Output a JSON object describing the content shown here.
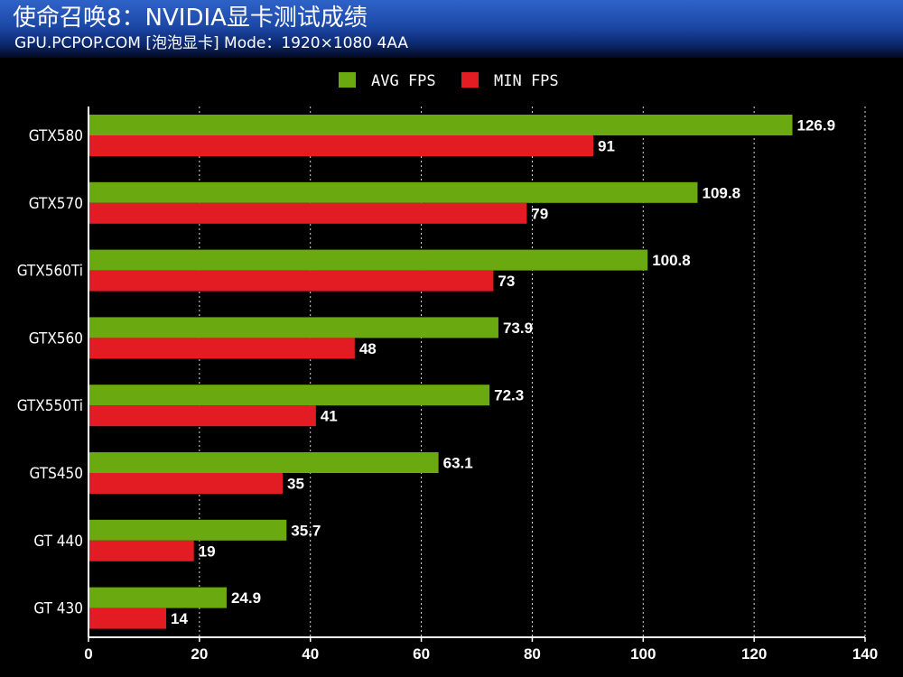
{
  "header": {
    "title": "使命召唤8：NVIDIA显卡测试成绩",
    "subtitle": "GPU.PCPOP.COM [泡泡显卡] Mode：1920×1080 4AA"
  },
  "colors": {
    "background": "#000000",
    "avg": "#6aaa10",
    "min": "#e31b23",
    "grid": "#ffffff",
    "text": "#ffffff"
  },
  "chart_data": {
    "type": "bar",
    "orientation": "horizontal",
    "categories": [
      "GTX580",
      "GTX570",
      "GTX560Ti",
      "GTX560",
      "GTX550Ti",
      "GTS450",
      "GT 440",
      "GT 430"
    ],
    "series": [
      {
        "name": "AVG FPS",
        "color": "#6aaa10",
        "values": [
          126.9,
          109.8,
          100.8,
          73.9,
          72.3,
          63.1,
          35.7,
          24.9
        ]
      },
      {
        "name": "MIN FPS",
        "color": "#e31b23",
        "values": [
          91,
          79,
          73,
          48,
          41,
          35,
          19,
          14
        ]
      }
    ],
    "xlim": [
      0,
      140
    ],
    "xticks": [
      0,
      20,
      40,
      60,
      80,
      100,
      120,
      140
    ],
    "grid": "vertical dashed",
    "legend_position": "top-center"
  }
}
